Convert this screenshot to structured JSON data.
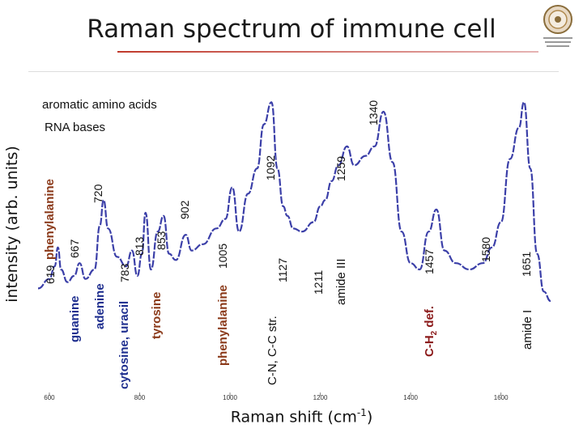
{
  "title": "Raman spectrum of immune cell",
  "logo_icon": "university-seal-icon",
  "axis": {
    "ylabel": "intensity (arb. units)",
    "xlabel_text": "Raman shift (cm",
    "xlabel_sup": "-1",
    "xlabel_close": ")"
  },
  "legend_text": {
    "aromatic": "aromatic amino acids",
    "rna": "RNA bases"
  },
  "peak_labels": [
    "619",
    "667",
    "720",
    "783",
    "813",
    "853",
    "902",
    "1005",
    "1092",
    "1127",
    "1211",
    "1259",
    "1340",
    "1457",
    "1580",
    "1651"
  ],
  "assignments": {
    "phenylalanine_1": "phenylalanine",
    "guanine": "guanine",
    "adenine": "adenine",
    "cytosine_uracil": "cytosine, uracil",
    "tyrosine": "tyrosine",
    "phenylalanine_2": "phenylalanine",
    "cn_cc": "C-N, C-C str.",
    "amide_iii": "amide III",
    "ch2_prefix": "C-H",
    "ch2_sub": "2",
    "ch2_suffix": " def.",
    "amide_i": "amide I"
  },
  "colors": {
    "line": "#3b3fa8",
    "brown": "#8b3a1a",
    "blue": "#1f2f8f",
    "red": "#8b1a1a"
  },
  "chart_data": {
    "type": "line",
    "title": "Raman spectrum of immune cell",
    "xlabel": "Raman shift (cm-1)",
    "ylabel": "intensity (arb. units)",
    "xlim": [
      575,
      1710
    ],
    "ylim": [
      0,
      1
    ],
    "x_ticks": [
      600,
      800,
      1000,
      1200,
      1400,
      1600
    ],
    "grid": false,
    "series": [
      {
        "x": [
          575,
          600,
          612,
          619,
          626,
          640,
          655,
          667,
          680,
          700,
          712,
          720,
          730,
          750,
          770,
          783,
          795,
          805,
          813,
          825,
          840,
          853,
          865,
          880,
          902,
          915,
          940,
          970,
          990,
          1005,
          1020,
          1040,
          1060,
          1075,
          1092,
          1105,
          1118,
          1127,
          1140,
          1160,
          1185,
          1200,
          1211,
          1225,
          1240,
          1259,
          1275,
          1300,
          1320,
          1340,
          1360,
          1380,
          1400,
          1420,
          1440,
          1457,
          1475,
          1500,
          1530,
          1560,
          1580,
          1600,
          1620,
          1640,
          1651,
          1665,
          1680,
          1695,
          1710
        ],
        "y": [
          0.34,
          0.37,
          0.41,
          0.47,
          0.4,
          0.36,
          0.38,
          0.42,
          0.37,
          0.4,
          0.54,
          0.62,
          0.53,
          0.44,
          0.41,
          0.46,
          0.38,
          0.45,
          0.58,
          0.4,
          0.52,
          0.57,
          0.45,
          0.43,
          0.51,
          0.46,
          0.48,
          0.53,
          0.56,
          0.66,
          0.52,
          0.64,
          0.72,
          0.86,
          0.93,
          0.72,
          0.6,
          0.57,
          0.53,
          0.52,
          0.55,
          0.6,
          0.62,
          0.68,
          0.73,
          0.79,
          0.73,
          0.76,
          0.79,
          0.9,
          0.74,
          0.52,
          0.42,
          0.4,
          0.52,
          0.59,
          0.46,
          0.42,
          0.4,
          0.42,
          0.47,
          0.55,
          0.75,
          0.85,
          0.93,
          0.72,
          0.45,
          0.33,
          0.3
        ]
      }
    ]
  }
}
